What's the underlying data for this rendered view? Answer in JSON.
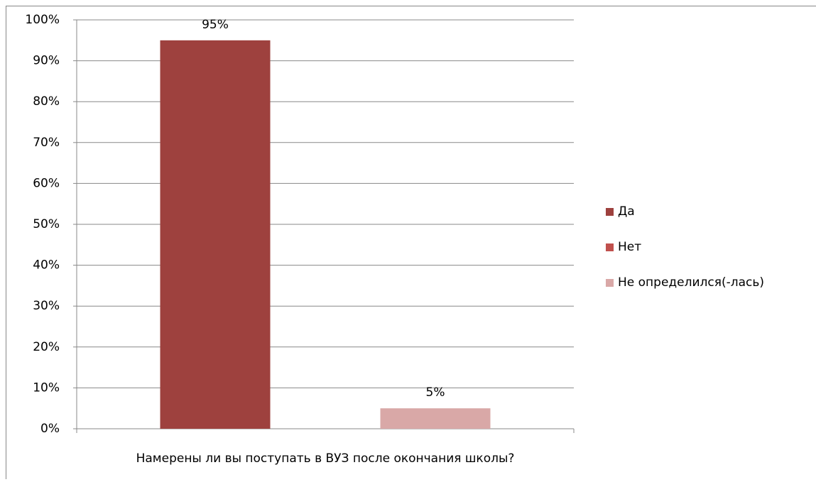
{
  "chart_data": {
    "type": "bar",
    "categories": [
      "Намерены ли вы поступать в ВУЗ после окончания школы?"
    ],
    "series": [
      {
        "name": "Да",
        "color": "#9e413e",
        "values": [
          95
        ],
        "value_labels": [
          "95%"
        ]
      },
      {
        "name": "Нет",
        "color": "#c0504d",
        "values": [
          null
        ],
        "value_labels": [
          null
        ]
      },
      {
        "name": "Не определился(-лась)",
        "color": "#d9a8a7",
        "values": [
          5
        ],
        "value_labels": [
          "5%"
        ]
      }
    ],
    "ylim": [
      0,
      100
    ],
    "yticks": [
      {
        "value": 0,
        "label": "0%"
      },
      {
        "value": 10,
        "label": "10%"
      },
      {
        "value": 20,
        "label": "20%"
      },
      {
        "value": 30,
        "label": "30%"
      },
      {
        "value": 40,
        "label": "40%"
      },
      {
        "value": 50,
        "label": "50%"
      },
      {
        "value": 60,
        "label": "60%"
      },
      {
        "value": 70,
        "label": "70%"
      },
      {
        "value": 80,
        "label": "80%"
      },
      {
        "value": 90,
        "label": "90%"
      },
      {
        "value": 100,
        "label": "100%"
      }
    ],
    "grid": true,
    "legend": "right"
  }
}
